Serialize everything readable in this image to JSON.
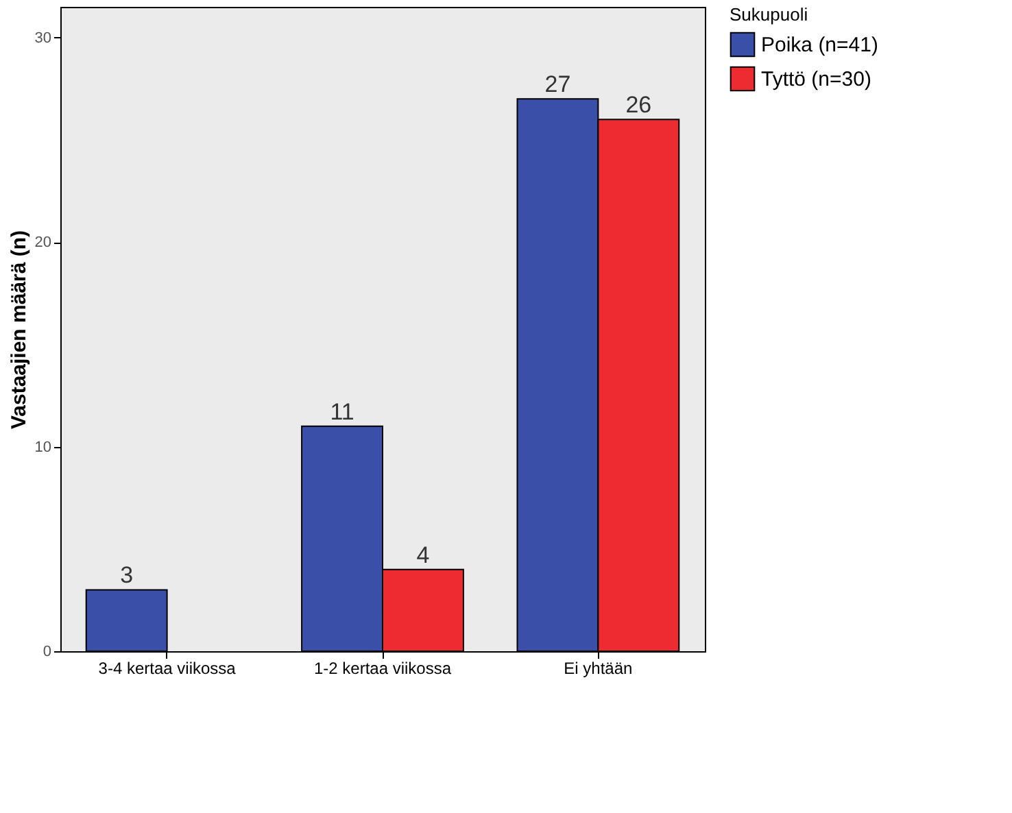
{
  "chart_data": {
    "type": "bar",
    "ylabel": "Vastaajien määrä (n)",
    "legend_title": "Sukupuoli",
    "categories": [
      "3-4 kertaa viikossa",
      "1-2 kertaa viikossa",
      "Ei yhtään"
    ],
    "series": [
      {
        "name": "Poika (n=41)",
        "color": "#3a4fa8",
        "values": [
          3,
          11,
          27
        ]
      },
      {
        "name": "Tyttö (n=30)",
        "color": "#ee2b31",
        "values": [
          null,
          4,
          26
        ]
      }
    ],
    "ylim": [
      0,
      31.5
    ],
    "yticks": [
      0,
      10,
      20,
      30
    ],
    "grid": false,
    "legend": "top right",
    "data_labels": true
  }
}
